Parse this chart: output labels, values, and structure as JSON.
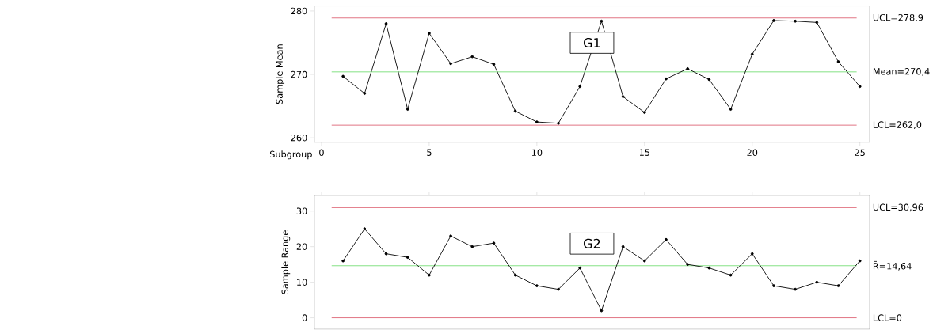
{
  "chart_data": [
    {
      "type": "line",
      "xlabel": "Subgroup",
      "ylabel": "Sample Mean",
      "x": [
        1,
        2,
        3,
        4,
        5,
        6,
        7,
        8,
        9,
        10,
        11,
        12,
        13,
        14,
        15,
        16,
        17,
        18,
        19,
        20,
        21,
        22,
        23,
        24,
        25
      ],
      "series": [
        {
          "color": "#000000",
          "values": [
            269.7,
            267.0,
            278.0,
            264.5,
            276.5,
            271.7,
            272.8,
            271.6,
            264.2,
            262.5,
            262.3,
            268.1,
            278.4,
            266.5,
            264.0,
            269.3,
            270.9,
            269.2,
            264.5,
            273.2,
            278.5,
            278.4,
            278.2,
            272.0,
            268.1
          ]
        }
      ],
      "xlim": [
        -0.33,
        25.45
      ],
      "xticks": [
        0,
        5,
        10,
        15,
        20,
        25
      ],
      "ylim": [
        259.3,
        280.8
      ],
      "yticks": [
        260,
        270,
        280
      ],
      "ref_lines": [
        {
          "axis": "y",
          "value": 278.9,
          "label": "UCL=278,9",
          "color": "#e07080"
        },
        {
          "axis": "y",
          "value": 270.4,
          "label": "Mean=270,4",
          "color": "#80e080"
        },
        {
          "axis": "y",
          "value": 262.0,
          "label": "LCL=262,0",
          "color": "#e07080"
        }
      ],
      "annotations": [
        "G1"
      ],
      "grid": false,
      "legend": false,
      "marker": "circle"
    },
    {
      "type": "line",
      "ylabel": "Sample Range",
      "x": [
        1,
        2,
        3,
        4,
        5,
        6,
        7,
        8,
        9,
        10,
        11,
        12,
        13,
        14,
        15,
        16,
        17,
        18,
        19,
        20,
        21,
        22,
        23,
        24,
        25
      ],
      "series": [
        {
          "color": "#000000",
          "values": [
            16,
            25,
            18,
            17,
            12,
            23,
            20,
            21,
            12,
            9,
            8,
            14,
            2,
            20,
            16,
            22,
            15,
            14,
            12,
            18,
            9,
            8,
            10,
            9,
            16
          ]
        }
      ],
      "xlim": [
        -0.33,
        25.45
      ],
      "xticks": [
        0,
        5,
        10,
        15,
        20,
        25
      ],
      "ylim": [
        -3.2,
        34.4
      ],
      "yticks": [
        0,
        10,
        20,
        30
      ],
      "ref_lines": [
        {
          "axis": "y",
          "value": 30.96,
          "label": "UCL=30,96",
          "color": "#e07080"
        },
        {
          "axis": "y",
          "value": 14.64,
          "label": "R̄=14,64",
          "color": "#80e080"
        },
        {
          "axis": "y",
          "value": 0,
          "label": "LCL=0",
          "color": "#e07080"
        }
      ],
      "annotations": [
        "G2"
      ],
      "grid": false,
      "legend": false,
      "marker": "circle",
      "tick_labels": "y"
    }
  ]
}
